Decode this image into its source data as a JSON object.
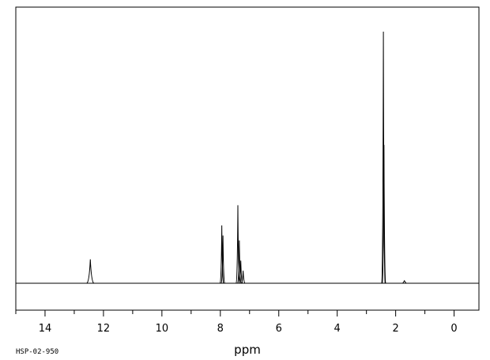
{
  "chart_data": {
    "type": "line",
    "title": "",
    "xlabel": "ppm",
    "ylabel": "",
    "xlim": [
      15.0,
      -0.85
    ],
    "ylim": [
      0,
      1.0
    ],
    "x_reversed": true,
    "grid": false,
    "x_tick_labels": [
      "14",
      "12",
      "10",
      "8",
      "6",
      "4",
      "2",
      "0"
    ],
    "x_tick_values": [
      14,
      12,
      10,
      8,
      6,
      4,
      2,
      0
    ],
    "spectrum_code": "HSP-02-950",
    "series": [
      {
        "peaks": [
          {
            "ppm": 12.45,
            "intensity": 0.095
          },
          {
            "ppm": 7.95,
            "intensity": 0.23
          },
          {
            "ppm": 7.91,
            "intensity": 0.19
          },
          {
            "ppm": 7.4,
            "intensity": 0.31
          },
          {
            "ppm": 7.35,
            "intensity": 0.17
          },
          {
            "ppm": 7.3,
            "intensity": 0.09
          },
          {
            "ppm": 7.22,
            "intensity": 0.05
          },
          {
            "ppm": 2.42,
            "intensity": 1.0
          },
          {
            "ppm": 2.4,
            "intensity": 0.55
          },
          {
            "ppm": 1.7,
            "intensity": 0.01
          }
        ]
      }
    ]
  }
}
